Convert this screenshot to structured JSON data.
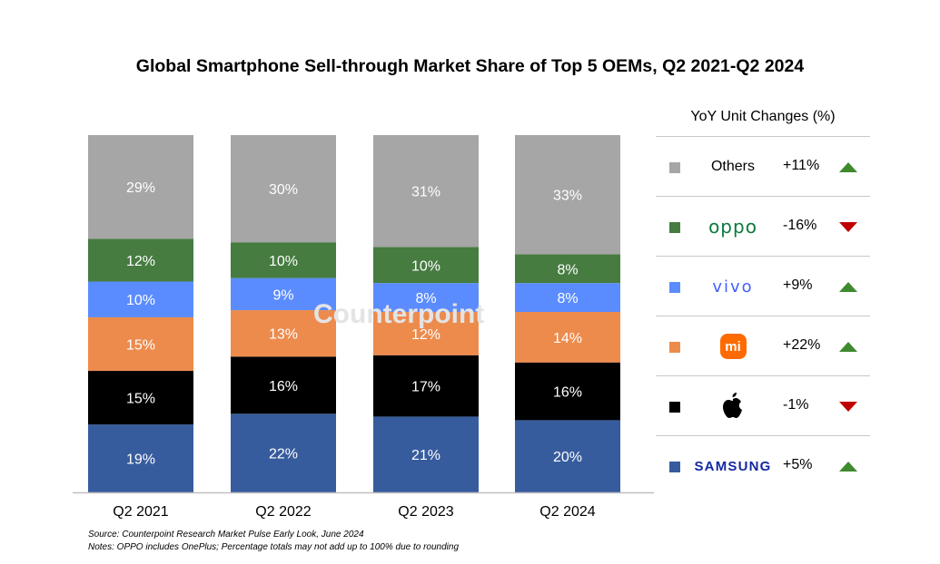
{
  "chart_data": {
    "type": "bar",
    "stacked": true,
    "title": "Global Smartphone Sell-through Market Share of Top 5 OEMs, Q2 2021-Q2 2024",
    "categories": [
      "Q2 2021",
      "Q2 2022",
      "Q2 2023",
      "Q2 2024"
    ],
    "series": [
      {
        "key": "samsung",
        "values": [
          19,
          22,
          21,
          20
        ],
        "color": "#375c9e"
      },
      {
        "key": "apple",
        "values": [
          15,
          16,
          17,
          16
        ],
        "color": "#000000"
      },
      {
        "key": "xiaomi",
        "values": [
          15,
          13,
          12,
          14
        ],
        "color": "#ed8b4d"
      },
      {
        "key": "vivo",
        "values": [
          10,
          9,
          8,
          8
        ],
        "color": "#5b8cff"
      },
      {
        "key": "oppo",
        "values": [
          12,
          10,
          10,
          8
        ],
        "color": "#467c40"
      },
      {
        "name": "Others",
        "key": "others",
        "values": [
          29,
          30,
          31,
          33
        ],
        "color": "#a6a6a6"
      }
    ],
    "value_suffix": "%",
    "grid": false,
    "legend_position": "right"
  },
  "legend": {
    "title": "YoY Unit Changes (%)",
    "items": [
      {
        "brand": "Others",
        "logo": "text",
        "change": "+11%",
        "trend": "up",
        "color": "#a6a6a6"
      },
      {
        "brand": "oppo",
        "logo": "oppo-logo",
        "change": "-16%",
        "trend": "down",
        "color": "#467c40"
      },
      {
        "brand": "vivo",
        "logo": "vivo-logo",
        "change": "+9%",
        "trend": "up",
        "color": "#5b8cff"
      },
      {
        "brand": "mi",
        "logo": "xiaomi-logo",
        "change": "+22%",
        "trend": "up",
        "color": "#ed8b4d"
      },
      {
        "brand": "",
        "logo": "apple-logo",
        "change": "-1%",
        "trend": "down",
        "color": "#000000"
      },
      {
        "brand": "SAMSUNG",
        "logo": "samsung-logo",
        "change": "+5%",
        "trend": "up",
        "color": "#375c9e"
      }
    ]
  },
  "footnotes": {
    "source": "Source: Counterpoint Research Market Pulse Early Look, June 2024",
    "notes": "Notes: OPPO includes OnePlus; Percentage totals may not add up to 100% due to rounding"
  },
  "watermark": "Counterpoint"
}
